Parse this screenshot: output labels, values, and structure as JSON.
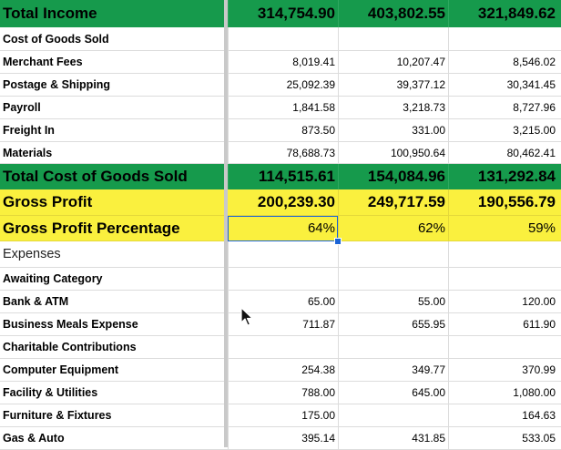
{
  "sheet": {
    "total_income": {
      "label": "Total Income",
      "values": [
        "314,754.90",
        "403,802.55",
        "321,849.62"
      ]
    },
    "cogs_header": {
      "label": "Cost of Goods Sold"
    },
    "cogs_rows": [
      {
        "label": "Merchant Fees",
        "values": [
          "8,019.41",
          "10,207.47",
          "8,546.02"
        ]
      },
      {
        "label": "Postage & Shipping",
        "values": [
          "25,092.39",
          "39,377.12",
          "30,341.45"
        ]
      },
      {
        "label": "Payroll",
        "values": [
          "1,841.58",
          "3,218.73",
          "8,727.96"
        ]
      },
      {
        "label": "Freight In",
        "values": [
          "873.50",
          "331.00",
          "3,215.00"
        ]
      },
      {
        "label": "Materials",
        "values": [
          "78,688.73",
          "100,950.64",
          "80,462.41"
        ]
      }
    ],
    "total_cogs": {
      "label": "Total Cost of Goods Sold",
      "values": [
        "114,515.61",
        "154,084.96",
        "131,292.84"
      ]
    },
    "gross_profit": {
      "label": "Gross Profit",
      "values": [
        "200,239.30",
        "249,717.59",
        "190,556.79"
      ]
    },
    "gross_profit_pct": {
      "label": "Gross Profit Percentage",
      "values": [
        "64%",
        "62%",
        "59%"
      ]
    },
    "expenses_header": {
      "label": "Expenses"
    },
    "expense_rows": [
      {
        "label": "Awaiting Category",
        "values": [
          "",
          "",
          ""
        ]
      },
      {
        "label": "Bank & ATM",
        "values": [
          "65.00",
          "55.00",
          "120.00"
        ]
      },
      {
        "label": "Business Meals Expense",
        "values": [
          "711.87",
          "655.95",
          "611.90"
        ]
      },
      {
        "label": "Charitable Contributions",
        "values": [
          "",
          "",
          ""
        ]
      },
      {
        "label": "Computer Equipment",
        "values": [
          "254.38",
          "349.77",
          "370.99"
        ]
      },
      {
        "label": "Facility & Utilities",
        "values": [
          "788.00",
          "645.00",
          "1,080.00"
        ]
      },
      {
        "label": "Furniture & Fixtures",
        "values": [
          "175.00",
          "",
          "164.63"
        ]
      },
      {
        "label": "Gas & Auto",
        "values": [
          "395.14",
          "431.85",
          "533.05"
        ]
      }
    ]
  },
  "colors": {
    "total_row": "#169a4c",
    "highlight_row": "#faf03e",
    "selection": "#1a63d6"
  },
  "selected_cell": "gross_profit_pct.values.0",
  "cursor_icon": "mouse-pointer-icon"
}
